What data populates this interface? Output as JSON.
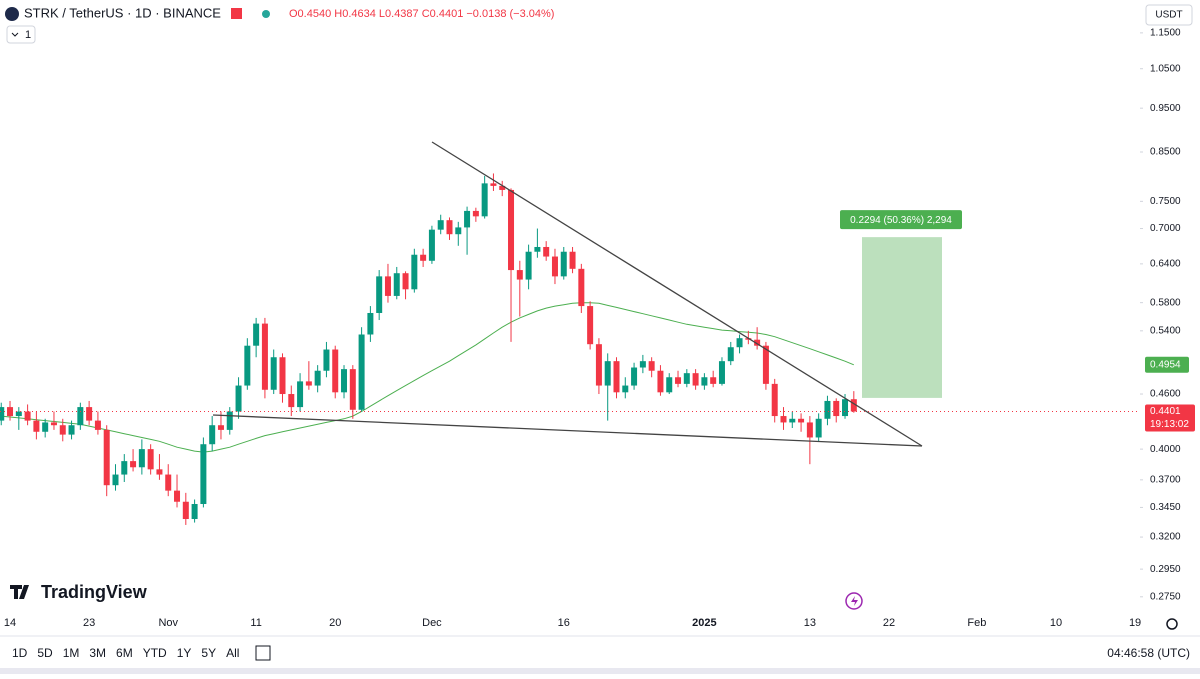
{
  "chart_data": {
    "type": "candlestick",
    "title": "STRK / TetherUS · 1D · BINANCE",
    "ohlc_legend": "O0.4540 H0.4634 L0.4387 C0.4401 −0.0138 (−3.04%)",
    "indicator_count": "1",
    "currency": "USDT",
    "brand": "TradingView",
    "up_color": "#089981",
    "down_color": "#f23645",
    "log_scale": true,
    "open": [
      0.43,
      0.445,
      0.435,
      0.44,
      0.43,
      0.418,
      0.428,
      0.425,
      0.415,
      0.425,
      0.445,
      0.43,
      0.42,
      0.365,
      0.375,
      0.388,
      0.382,
      0.4,
      0.38,
      0.375,
      0.36,
      0.35,
      0.335,
      0.348,
      0.405,
      0.425,
      0.42,
      0.44,
      0.47,
      0.52,
      0.55,
      0.465,
      0.505,
      0.46,
      0.445,
      0.475,
      0.47,
      0.488,
      0.515,
      0.462,
      0.49,
      0.442,
      0.535,
      0.565,
      0.62,
      0.59,
      0.625,
      0.6,
      0.655,
      0.645,
      0.698,
      0.715,
      0.69,
      0.702,
      0.732,
      0.722,
      0.785,
      0.78,
      0.772,
      0.63,
      0.615,
      0.66,
      0.668,
      0.652,
      0.62,
      0.66,
      0.632,
      0.575,
      0.522,
      0.47,
      0.5,
      0.462,
      0.47,
      0.492,
      0.5,
      0.488,
      0.462,
      0.48,
      0.472,
      0.485,
      0.47,
      0.48,
      0.472,
      0.5,
      0.518,
      0.53,
      0.528,
      0.52,
      0.472,
      0.435,
      0.428,
      0.432,
      0.428,
      0.412,
      0.432,
      0.452,
      0.435,
      0.454
    ],
    "high": [
      0.45,
      0.452,
      0.445,
      0.448,
      0.44,
      0.432,
      0.44,
      0.432,
      0.43,
      0.45,
      0.452,
      0.44,
      0.425,
      0.385,
      0.395,
      0.4,
      0.41,
      0.405,
      0.395,
      0.385,
      0.375,
      0.358,
      0.352,
      0.412,
      0.435,
      0.44,
      0.445,
      0.48,
      0.53,
      0.558,
      0.558,
      0.515,
      0.51,
      0.47,
      0.485,
      0.5,
      0.495,
      0.525,
      0.52,
      0.495,
      0.495,
      0.545,
      0.575,
      0.63,
      0.64,
      0.635,
      0.628,
      0.665,
      0.665,
      0.705,
      0.725,
      0.72,
      0.712,
      0.74,
      0.738,
      0.8,
      0.805,
      0.79,
      0.775,
      0.645,
      0.672,
      0.7,
      0.678,
      0.665,
      0.668,
      0.668,
      0.64,
      0.582,
      0.53,
      0.51,
      0.505,
      0.48,
      0.498,
      0.508,
      0.505,
      0.495,
      0.485,
      0.488,
      0.49,
      0.49,
      0.485,
      0.488,
      0.505,
      0.525,
      0.535,
      0.54,
      0.545,
      0.525,
      0.478,
      0.445,
      0.44,
      0.438,
      0.435,
      0.438,
      0.458,
      0.455,
      0.46,
      0.4634
    ],
    "low": [
      0.425,
      0.43,
      0.42,
      0.425,
      0.41,
      0.412,
      0.42,
      0.408,
      0.41,
      0.42,
      0.425,
      0.415,
      0.355,
      0.36,
      0.368,
      0.378,
      0.375,
      0.375,
      0.37,
      0.355,
      0.345,
      0.33,
      0.332,
      0.345,
      0.398,
      0.41,
      0.415,
      0.432,
      0.465,
      0.505,
      0.455,
      0.46,
      0.45,
      0.435,
      0.44,
      0.465,
      0.462,
      0.48,
      0.455,
      0.455,
      0.432,
      0.44,
      0.525,
      0.555,
      0.58,
      0.585,
      0.585,
      0.595,
      0.635,
      0.64,
      0.69,
      0.68,
      0.67,
      0.655,
      0.712,
      0.718,
      0.77,
      0.76,
      0.525,
      0.56,
      0.6,
      0.65,
      0.645,
      0.608,
      0.615,
      0.625,
      0.565,
      0.515,
      0.46,
      0.43,
      0.455,
      0.455,
      0.465,
      0.485,
      0.48,
      0.458,
      0.46,
      0.468,
      0.468,
      0.465,
      0.465,
      0.468,
      0.47,
      0.495,
      0.51,
      0.522,
      0.515,
      0.465,
      0.428,
      0.42,
      0.422,
      0.418,
      0.385,
      0.408,
      0.425,
      0.428,
      0.432,
      0.4387
    ],
    "close": [
      0.445,
      0.435,
      0.44,
      0.43,
      0.418,
      0.428,
      0.425,
      0.415,
      0.425,
      0.445,
      0.43,
      0.42,
      0.365,
      0.375,
      0.388,
      0.382,
      0.4,
      0.38,
      0.375,
      0.36,
      0.35,
      0.335,
      0.348,
      0.405,
      0.425,
      0.42,
      0.44,
      0.47,
      0.52,
      0.55,
      0.465,
      0.505,
      0.46,
      0.445,
      0.475,
      0.47,
      0.488,
      0.515,
      0.462,
      0.49,
      0.442,
      0.535,
      0.565,
      0.62,
      0.59,
      0.625,
      0.6,
      0.655,
      0.645,
      0.698,
      0.715,
      0.69,
      0.702,
      0.732,
      0.722,
      0.785,
      0.78,
      0.772,
      0.63,
      0.615,
      0.66,
      0.668,
      0.652,
      0.62,
      0.66,
      0.632,
      0.575,
      0.522,
      0.47,
      0.5,
      0.462,
      0.47,
      0.492,
      0.5,
      0.488,
      0.462,
      0.48,
      0.472,
      0.485,
      0.47,
      0.48,
      0.472,
      0.5,
      0.518,
      0.53,
      0.528,
      0.52,
      0.472,
      0.435,
      0.428,
      0.432,
      0.428,
      0.412,
      0.432,
      0.452,
      0.435,
      0.454,
      0.4401
    ],
    "ma": {
      "color": "#4caf50",
      "values": [
        0.435,
        0.434,
        0.433,
        0.432,
        0.431,
        0.43,
        0.429,
        0.428,
        0.427,
        0.426,
        0.424,
        0.422,
        0.42,
        0.418,
        0.416,
        0.414,
        0.412,
        0.41,
        0.408,
        0.405,
        0.402,
        0.4,
        0.398,
        0.397,
        0.398,
        0.4,
        0.402,
        0.405,
        0.408,
        0.411,
        0.414,
        0.416,
        0.418,
        0.42,
        0.422,
        0.424,
        0.426,
        0.428,
        0.43,
        0.432,
        0.435,
        0.44,
        0.446,
        0.452,
        0.458,
        0.464,
        0.47,
        0.476,
        0.482,
        0.488,
        0.494,
        0.5,
        0.507,
        0.514,
        0.521,
        0.529,
        0.537,
        0.545,
        0.552,
        0.558,
        0.563,
        0.568,
        0.572,
        0.575,
        0.577,
        0.579,
        0.58,
        0.58,
        0.579,
        0.576,
        0.573,
        0.57,
        0.567,
        0.564,
        0.561,
        0.558,
        0.555,
        0.552,
        0.549,
        0.547,
        0.545,
        0.543,
        0.541,
        0.54,
        0.539,
        0.538,
        0.537,
        0.535,
        0.532,
        0.528,
        0.524,
        0.52,
        0.516,
        0.512,
        0.508,
        0.504,
        0.5,
        0.4954
      ]
    },
    "ma_label": 0.4954,
    "last_price": 0.4401,
    "countdown": "19:13:02",
    "position": {
      "entry": 0.4555,
      "target": 0.6849,
      "label": "0.2294 (50.36%) 2,294",
      "color": "#a5d6a7"
    },
    "xlim": [
      -0.14,
      129.56
    ],
    "xticks": [
      {
        "value": 1,
        "label": "14"
      },
      {
        "value": 10,
        "label": "23"
      },
      {
        "value": 19,
        "label": "Nov"
      },
      {
        "value": 29,
        "label": "11"
      },
      {
        "value": 38,
        "label": "20"
      },
      {
        "value": 49,
        "label": "Dec"
      },
      {
        "value": 64,
        "label": "16"
      },
      {
        "value": 80,
        "label": "2025"
      },
      {
        "value": 92,
        "label": "13"
      },
      {
        "value": 101,
        "label": "22"
      },
      {
        "value": 111,
        "label": "Feb"
      },
      {
        "value": 120,
        "label": "10"
      },
      {
        "value": 129,
        "label": "19"
      }
    ],
    "ylim": [
      0.2646,
      1.25
    ],
    "yticks": [
      {
        "value": 1.15,
        "label": "1.1500"
      },
      {
        "value": 1.05,
        "label": "1.0500"
      },
      {
        "value": 0.95,
        "label": "0.9500"
      },
      {
        "value": 0.85,
        "label": "0.8500"
      },
      {
        "value": 0.75,
        "label": "0.7500"
      },
      {
        "value": 0.7,
        "label": "0.7000"
      },
      {
        "value": 0.64,
        "label": "0.6400"
      },
      {
        "value": 0.58,
        "label": "0.5800"
      },
      {
        "value": 0.54,
        "label": "0.5400"
      },
      {
        "value": 0.46,
        "label": "0.4600"
      },
      {
        "value": 0.4,
        "label": "0.4000"
      },
      {
        "value": 0.37,
        "label": "0.3700"
      },
      {
        "value": 0.345,
        "label": "0.3450"
      },
      {
        "value": 0.32,
        "label": "0.3200"
      },
      {
        "value": 0.295,
        "label": "0.2950"
      },
      {
        "value": 0.275,
        "label": "0.2750"
      }
    ],
    "ranges": [
      "1D",
      "5D",
      "1M",
      "3M",
      "6M",
      "YTD",
      "1Y",
      "5Y",
      "All"
    ],
    "clock": "04:46:58 (UTC)"
  }
}
